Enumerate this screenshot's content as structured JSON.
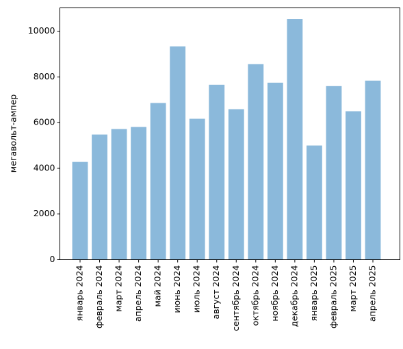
{
  "chart_data": {
    "type": "bar",
    "ylabel": "мегавольт-ампер",
    "categories": [
      "январь 2024",
      "февраль 2024",
      "март 2024",
      "апрель 2024",
      "май 2024",
      "июнь 2024",
      "июль 2024",
      "август 2024",
      "сентябрь 2024",
      "октябрь 2024",
      "ноябрь 2024",
      "декабрь 2024",
      "январь 2025",
      "февраль 2025",
      "март 2025",
      "апрель 2025"
    ],
    "values": [
      4280,
      5480,
      5720,
      5810,
      6860,
      9340,
      6170,
      7660,
      6590,
      8560,
      7750,
      10530,
      5000,
      7600,
      6500,
      7840
    ],
    "color": "#8bb9db",
    "ylim": [
      0,
      11025
    ],
    "yticks": [
      0,
      2000,
      4000,
      6000,
      8000,
      10000
    ],
    "grid": false
  }
}
